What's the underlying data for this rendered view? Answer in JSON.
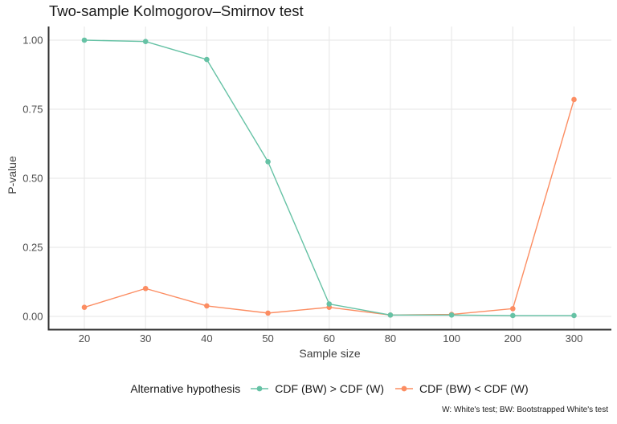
{
  "chart_data": {
    "type": "line",
    "title": "Two-sample Kolmogorov–Smirnov test",
    "xlabel": "Sample size",
    "ylabel": "P-value",
    "x_scale": "discrete (equal spacing)",
    "categories": [
      "20",
      "30",
      "40",
      "50",
      "60",
      "80",
      "100",
      "200",
      "300"
    ],
    "ylim": [
      0,
      1
    ],
    "yticks": [
      {
        "value": 0.0,
        "label": "0.00"
      },
      {
        "value": 0.25,
        "label": "0.25"
      },
      {
        "value": 0.5,
        "label": "0.50"
      },
      {
        "value": 0.75,
        "label": "0.75"
      },
      {
        "value": 1.0,
        "label": "1.00"
      }
    ],
    "grid": "major gridlines only, light gray on white panel",
    "legend_position": "bottom",
    "legend_title": "Alternative hypothesis",
    "series": [
      {
        "name": "CDF (BW) > CDF (W)",
        "color": "#66C2A5",
        "values": [
          1.0,
          0.995,
          0.93,
          0.56,
          0.045,
          0.005,
          0.005,
          0.003,
          0.003
        ]
      },
      {
        "name": "CDF (BW) < CDF (W)",
        "color": "#FC8D62",
        "values": [
          0.033,
          0.101,
          0.038,
          0.012,
          0.033,
          0.005,
          0.007,
          0.028,
          0.785
        ]
      }
    ],
    "caption": "W: White's test; BW: Bootstrapped White's test",
    "colors": {
      "grid": "#E9E9E9",
      "axis_line": "#2F2F2F",
      "tick_text": "#4D4D4D",
      "axis_title_text": "#404040",
      "title_text": "#1A1A1A",
      "background": "#FFFFFF"
    }
  }
}
